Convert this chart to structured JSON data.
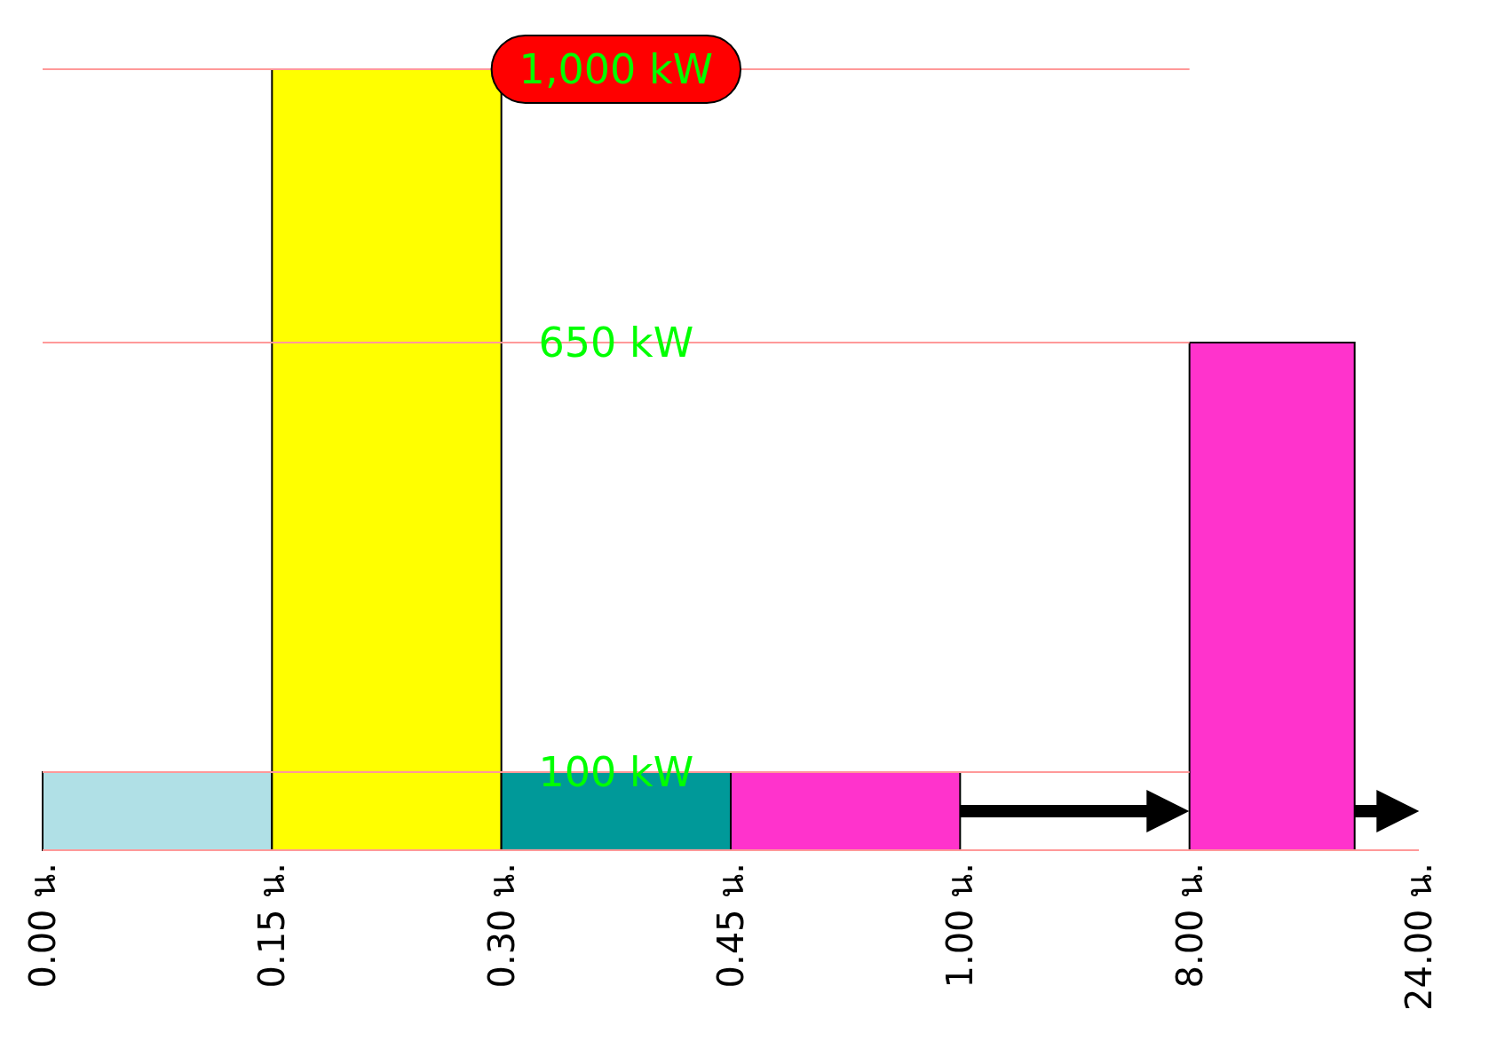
{
  "chart_data": {
    "type": "bar",
    "categories": [
      "0.00 น.",
      "0.15 น.",
      "0.30 น.",
      "0.45 น.",
      "1.00 น.",
      "8.00 น.",
      "24.00 น."
    ],
    "values": [
      100,
      1000,
      100,
      100,
      null,
      650,
      null
    ],
    "colors": [
      "#b0e0e6",
      "#ffff00",
      "#009999",
      "#ff33cc",
      null,
      "#ff33cc",
      null
    ],
    "ylim": [
      0,
      1000
    ],
    "tick_labels": "x",
    "grid": false,
    "ref_lines": [
      {
        "axis": "y",
        "value": 1000,
        "label": "1,000 kW",
        "color": "#ff9999"
      },
      {
        "axis": "y",
        "value": 650,
        "label": "650 kW",
        "color": "#ff9999"
      },
      {
        "axis": "y",
        "value": 100,
        "label": "100 kW",
        "color": "#ff9999"
      },
      {
        "axis": "y",
        "value": 0,
        "color": "#ff9999"
      }
    ]
  }
}
